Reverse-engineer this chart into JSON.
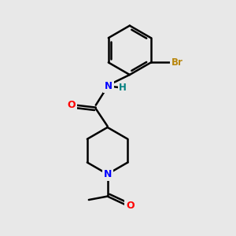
{
  "background_color": "#e8e8e8",
  "bond_color": "#000000",
  "bond_width": 1.8,
  "atom_colors": {
    "O": "#ff0000",
    "N": "#0000ff",
    "Br": "#b8860b",
    "NH": "#0000ff",
    "H": "#008080"
  },
  "font_size": 8.5,
  "fig_size": [
    3.0,
    3.0
  ],
  "dpi": 100,
  "xlim": [
    0,
    10
  ],
  "ylim": [
    0,
    10
  ]
}
